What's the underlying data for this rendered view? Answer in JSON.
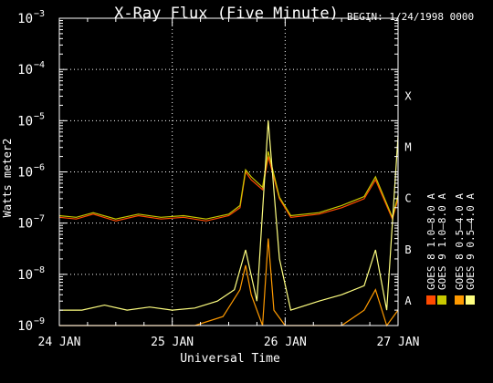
{
  "chart_data": {
    "type": "line",
    "title": "X-Ray Flux (Five Minute)",
    "begin_label": "BEGIN: 1/24/1998 0000",
    "xlabel": "Universal Time",
    "ylabel": "Watts meter2",
    "yscale": "log",
    "ylim_exp": [
      -9,
      -3
    ],
    "xlim_days": [
      0,
      3
    ],
    "x_ticks": [
      {
        "day": 0,
        "label": "24 JAN"
      },
      {
        "day": 1,
        "label": "25 JAN"
      },
      {
        "day": 2,
        "label": "26 JAN"
      },
      {
        "day": 3,
        "label": "27 JAN"
      }
    ],
    "y_ticks": [
      {
        "exp": -3,
        "label": "10",
        "sup": "−3"
      },
      {
        "exp": -4,
        "label": "10",
        "sup": "−4"
      },
      {
        "exp": -5,
        "label": "10",
        "sup": "−5"
      },
      {
        "exp": -6,
        "label": "10",
        "sup": "−6"
      },
      {
        "exp": -7,
        "label": "10",
        "sup": "−7"
      },
      {
        "exp": -8,
        "label": "10",
        "sup": "−8"
      },
      {
        "exp": -9,
        "label": "10",
        "sup": "−9"
      }
    ],
    "flare_classes": [
      {
        "exp": -4,
        "label": "X"
      },
      {
        "exp": -5,
        "label": "M"
      },
      {
        "exp": -6,
        "label": "C"
      },
      {
        "exp": -7,
        "label": "B"
      },
      {
        "exp": -8,
        "label": "A"
      }
    ],
    "grid": true,
    "legend_placement": "right",
    "series": [
      {
        "name": "GOES 8 1.0–8.0 A",
        "color": "#ff4a00",
        "x": [
          0.0,
          0.15,
          0.3,
          0.5,
          0.7,
          0.9,
          1.1,
          1.3,
          1.5,
          1.6,
          1.65,
          1.7,
          1.8,
          1.85,
          1.95,
          2.05,
          2.3,
          2.5,
          2.7,
          2.8,
          2.95,
          3.0
        ],
        "y": [
          1.3e-07,
          1.2e-07,
          1.5e-07,
          1.1e-07,
          1.4e-07,
          1.2e-07,
          1.3e-07,
          1.1e-07,
          1.4e-07,
          2e-07,
          1e-06,
          7e-07,
          4.5e-07,
          2e-06,
          3e-07,
          1.3e-07,
          1.5e-07,
          2e-07,
          3e-07,
          7e-07,
          1.2e-07,
          3e-07
        ]
      },
      {
        "name": "GOES 9 1.0–8.0 A",
        "color": "#c8c800",
        "x": [
          0.0,
          0.15,
          0.3,
          0.5,
          0.7,
          0.9,
          1.1,
          1.3,
          1.5,
          1.6,
          1.65,
          1.7,
          1.8,
          1.85,
          1.95,
          2.05,
          2.3,
          2.5,
          2.7,
          2.8,
          2.95,
          3.0
        ],
        "y": [
          1.4e-07,
          1.3e-07,
          1.6e-07,
          1.2e-07,
          1.5e-07,
          1.3e-07,
          1.4e-07,
          1.2e-07,
          1.5e-07,
          2.2e-07,
          1.1e-06,
          8e-07,
          5e-07,
          2.5e-06,
          3.2e-07,
          1.4e-07,
          1.6e-07,
          2.2e-07,
          3.3e-07,
          8e-07,
          1.3e-07,
          3.5e-07
        ]
      },
      {
        "name": "GOES 8 0.5–4.0 A",
        "color": "#ff9a00",
        "x": [
          0.0,
          0.3,
          0.6,
          0.9,
          1.2,
          1.45,
          1.6,
          1.65,
          1.7,
          1.8,
          1.85,
          1.9,
          2.0,
          2.2,
          2.5,
          2.7,
          2.8,
          2.9,
          3.0
        ],
        "y": [
          1e-09,
          1e-09,
          1e-09,
          1e-09,
          1e-09,
          1.5e-09,
          5e-09,
          1.5e-08,
          4e-09,
          1e-09,
          5e-08,
          2e-09,
          1e-09,
          1e-09,
          1e-09,
          2e-09,
          5e-09,
          1e-09,
          2e-09
        ]
      },
      {
        "name": "GOES 9 0.5–4.0 A",
        "color": "#ffff80",
        "x": [
          0.0,
          0.2,
          0.4,
          0.6,
          0.8,
          1.0,
          1.2,
          1.4,
          1.55,
          1.65,
          1.75,
          1.85,
          1.95,
          2.05,
          2.3,
          2.5,
          2.7,
          2.8,
          2.9,
          3.0
        ],
        "y": [
          2e-09,
          2e-09,
          2.5e-09,
          2e-09,
          2.3e-09,
          2e-09,
          2.2e-09,
          3e-09,
          5e-09,
          3e-08,
          3e-09,
          1e-05,
          2e-08,
          2e-09,
          3e-09,
          4e-09,
          6e-09,
          3e-08,
          2e-09,
          5e-06
        ]
      }
    ]
  }
}
